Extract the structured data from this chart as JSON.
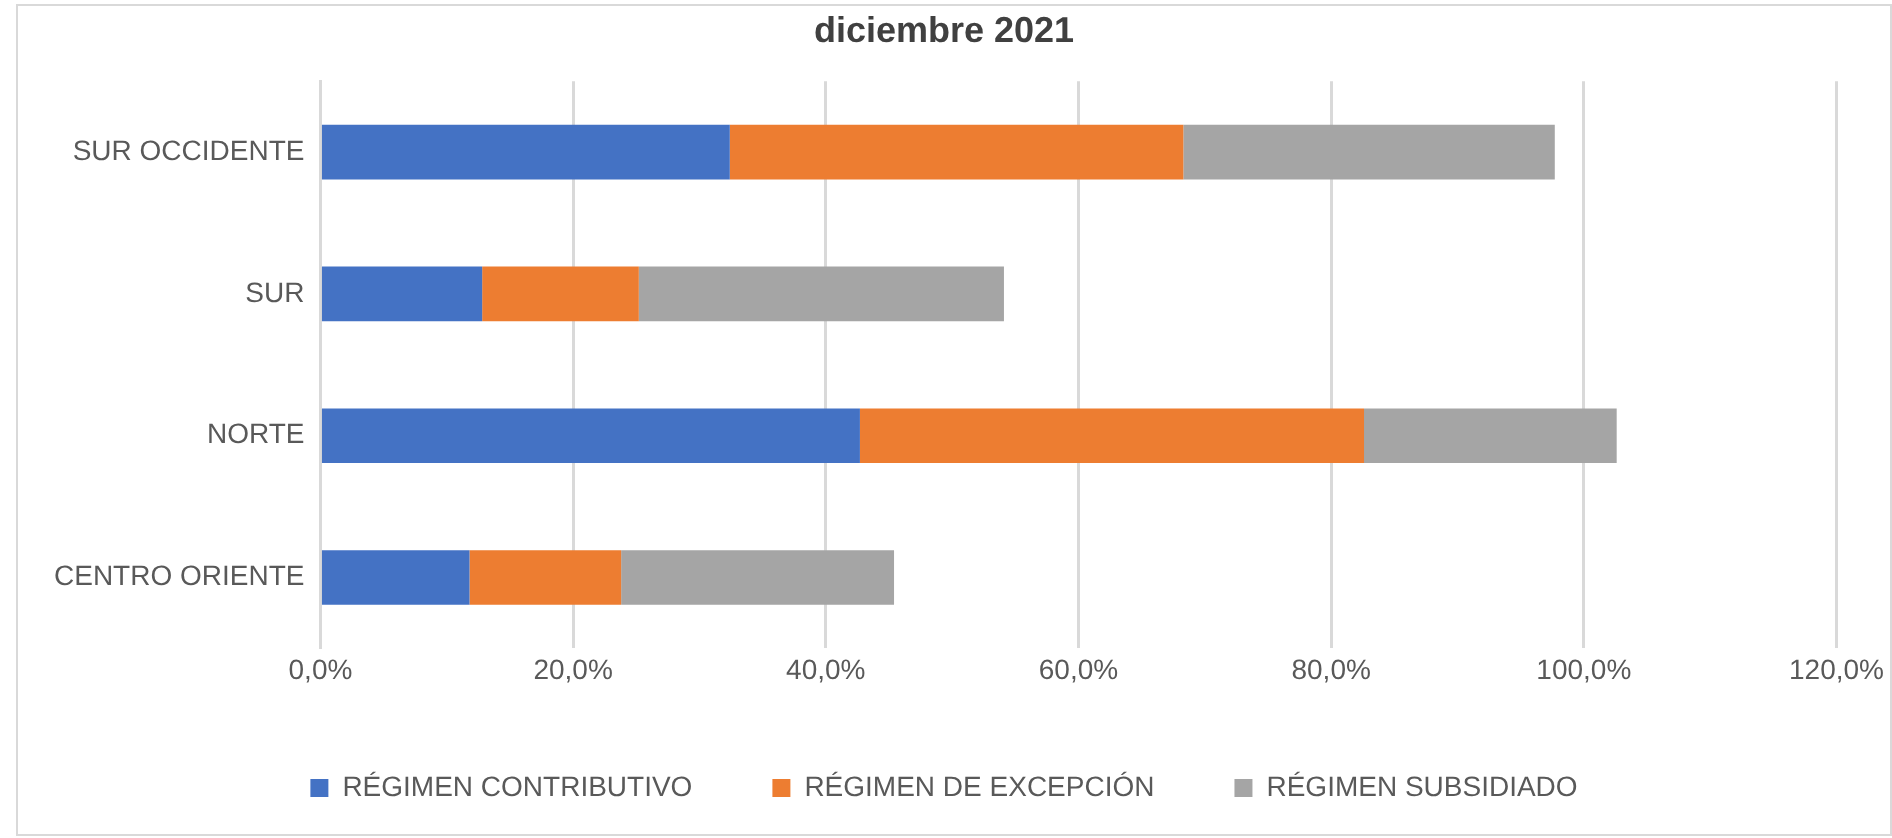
{
  "chart_data": {
    "type": "bar",
    "orientation": "horizontal",
    "stacked": true,
    "title": "diciembre 2021",
    "categories": [
      "SUR OCCIDENTE",
      "SUR",
      "NORTE",
      "CENTRO ORIENTE"
    ],
    "series": [
      {
        "name": "RÉGIMEN CONTRIBUTIVO",
        "color": "#4472c4",
        "values": [
          32.4,
          12.8,
          42.7,
          11.8
        ]
      },
      {
        "name": "RÉGIMEN DE EXCEPCIÓN",
        "color": "#ed7d31",
        "values": [
          35.9,
          12.4,
          39.9,
          12.0
        ]
      },
      {
        "name": "RÉGIMEN SUBSIDIADO",
        "color": "#a5a5a5",
        "values": [
          29.4,
          28.9,
          20.0,
          21.6
        ]
      }
    ],
    "xlim": [
      0,
      120
    ],
    "xticks": [
      {
        "value": 0,
        "label": "0,0%"
      },
      {
        "value": 20,
        "label": "20,0%"
      },
      {
        "value": 40,
        "label": "40,0%"
      },
      {
        "value": 60,
        "label": "60,0%"
      },
      {
        "value": 80,
        "label": "80,0%"
      },
      {
        "value": 100,
        "label": "100,0%"
      },
      {
        "value": 120,
        "label": "120,0%"
      }
    ],
    "grid": "x",
    "legend": "bottom"
  }
}
